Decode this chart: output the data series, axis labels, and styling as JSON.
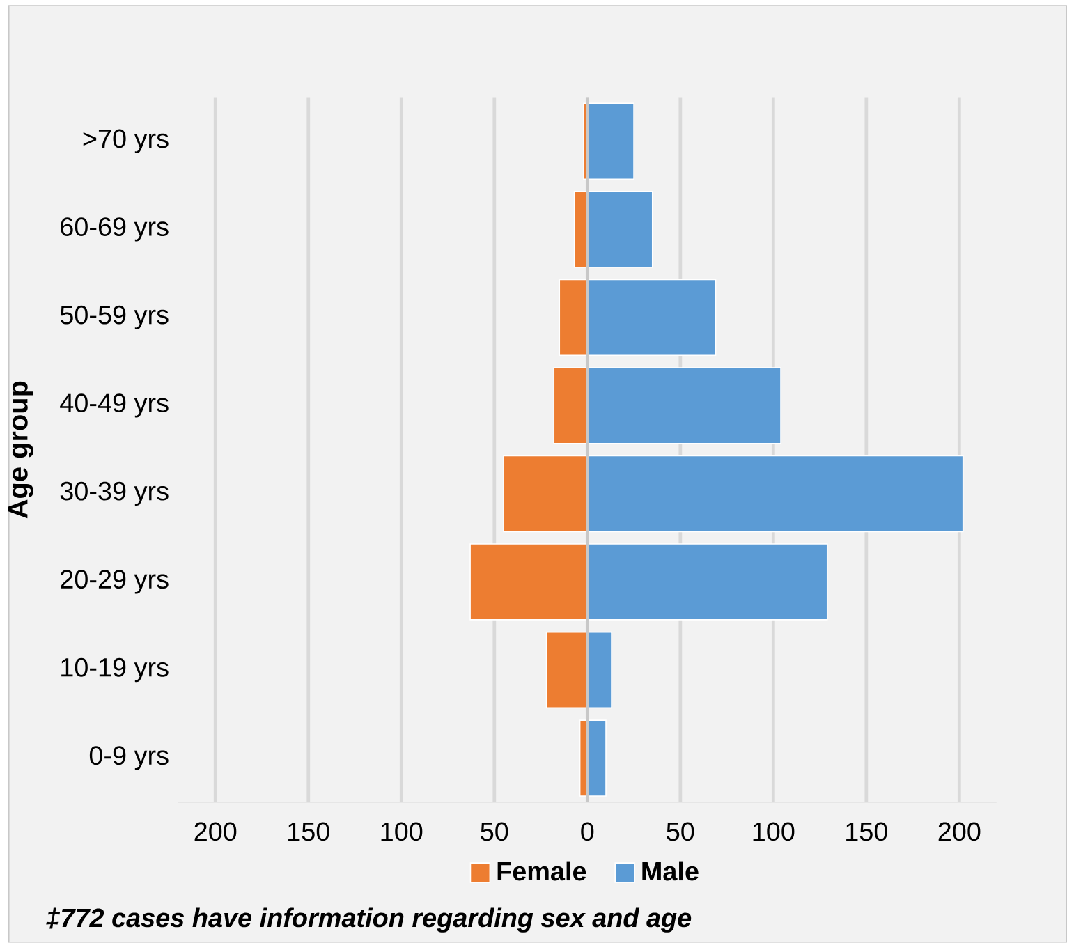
{
  "chart_data": {
    "type": "bar",
    "orientation": "horizontal",
    "stacked": true,
    "categories": [
      ">70 yrs",
      "60-69 yrs",
      "50-59 yrs",
      "40-49 yrs",
      "30-39 yrs",
      "20-29 yrs",
      "10-19 yrs",
      "0-9 yrs"
    ],
    "series": [
      {
        "name": "Female",
        "color": "#ed7d31",
        "values": [
          -2,
          -7,
          -15,
          -18,
          -45,
          -63,
          -22,
          -4
        ]
      },
      {
        "name": "Male",
        "color": "#5b9bd5",
        "values": [
          25,
          35,
          69,
          104,
          202,
          129,
          13,
          10
        ]
      }
    ],
    "xlim": [
      -220,
      220
    ],
    "xticks": [
      {
        "value": -200,
        "label": "200"
      },
      {
        "value": -150,
        "label": "150"
      },
      {
        "value": -100,
        "label": "100"
      },
      {
        "value": -50,
        "label": "50"
      },
      0,
      50,
      100,
      150,
      200
    ],
    "ylabel": "Age group",
    "grid": "x",
    "legend": "bottom",
    "annotations": [
      "‡772 cases have information regarding sex and age"
    ]
  }
}
